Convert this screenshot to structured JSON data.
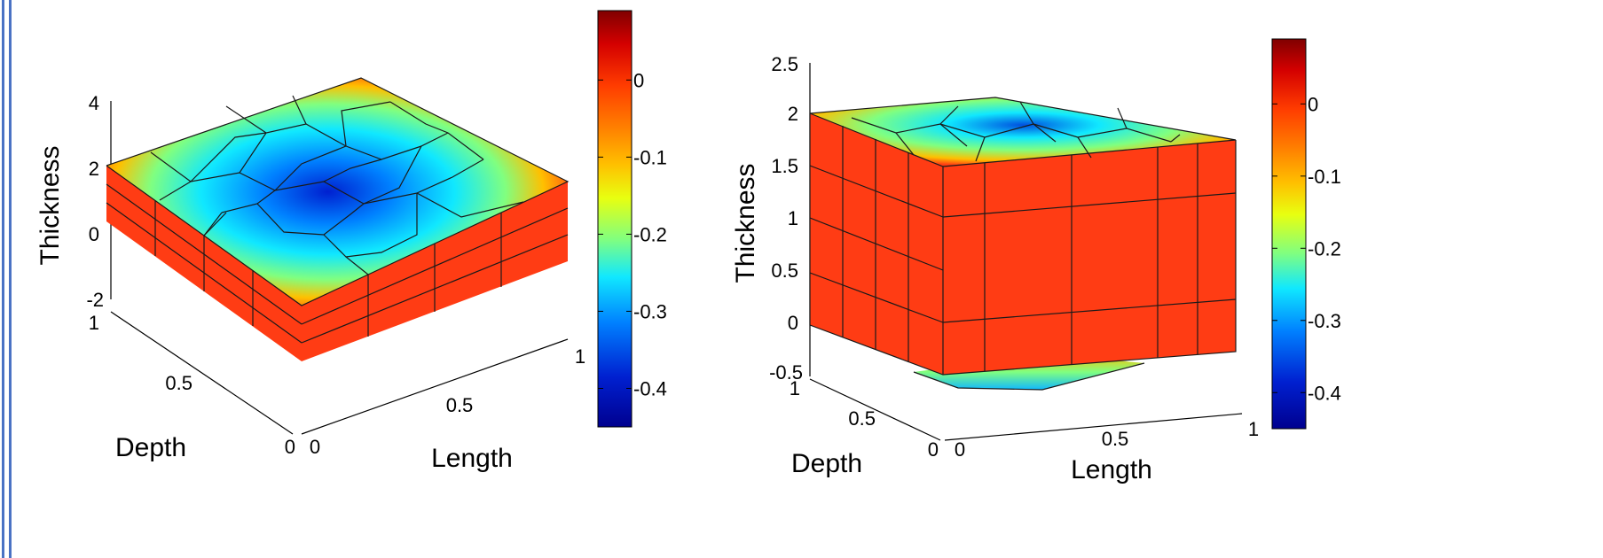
{
  "colors": {
    "face": "#ff3c14",
    "edge": "#1a1a1a",
    "frame": "#4a72c4",
    "colormap": [
      "#800000",
      "#d40000",
      "#ff3c00",
      "#ff7f00",
      "#ffc000",
      "#e8ff10",
      "#80ff80",
      "#10e8ff",
      "#0080ff",
      "#0020d0",
      "#00008f"
    ]
  },
  "chart_data": [
    {
      "type": "surface3d",
      "zlabel": "Thickness",
      "ylabel": "Depth",
      "xlabel": "Length",
      "ztick_labels": [
        "4",
        "2",
        "0",
        "-2"
      ],
      "ytick_labels": [
        "1",
        "0.5",
        "0"
      ],
      "xtick_labels": [
        "0",
        "0.5",
        "1"
      ],
      "zlim": [
        -2,
        4
      ],
      "ylim": [
        0,
        1
      ],
      "xlim": [
        0,
        1
      ],
      "colorbar": {
        "range": [
          -0.45,
          0.09
        ],
        "ticks": [
          {
            "value": 0,
            "label": "0"
          },
          {
            "value": -0.1,
            "label": "-0.1"
          },
          {
            "value": -0.2,
            "label": "-0.2"
          },
          {
            "value": -0.3,
            "label": "-0.3"
          },
          {
            "value": -0.4,
            "label": "-0.4"
          }
        ]
      }
    },
    {
      "type": "surface3d",
      "zlabel": "Thickness",
      "ylabel": "Depth",
      "xlabel": "Length",
      "ztick_labels": [
        "2.5",
        "2",
        "1.5",
        "1",
        "0.5",
        "0",
        "-0.5"
      ],
      "ytick_labels": [
        "1",
        "0.5",
        "0"
      ],
      "xtick_labels": [
        "0",
        "0.5",
        "1"
      ],
      "zlim": [
        -0.5,
        2.5
      ],
      "ylim": [
        0,
        1
      ],
      "xlim": [
        0,
        1
      ],
      "colorbar": {
        "range": [
          -0.45,
          0.09
        ],
        "ticks": [
          {
            "value": 0,
            "label": "0"
          },
          {
            "value": -0.1,
            "label": "-0.1"
          },
          {
            "value": -0.2,
            "label": "-0.2"
          },
          {
            "value": -0.3,
            "label": "-0.3"
          },
          {
            "value": -0.4,
            "label": "-0.4"
          }
        ]
      }
    }
  ]
}
